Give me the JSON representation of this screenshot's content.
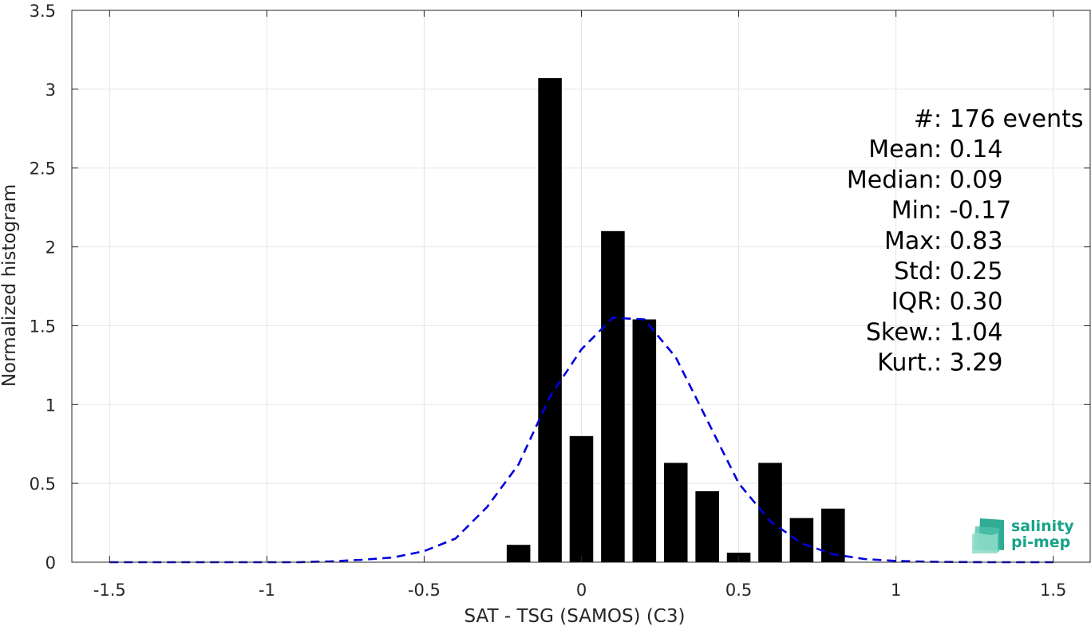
{
  "chart_data": {
    "type": "bar",
    "xlabel": "SAT - TSG (SAMOS) (C3)",
    "ylabel": "Normalized histogram",
    "xlim": [
      -1.62,
      1.62
    ],
    "ylim": [
      0,
      3.5
    ],
    "x_ticks": [
      -1.5,
      -1,
      -0.5,
      0,
      0.5,
      1,
      1.5
    ],
    "x_tick_labels": [
      "-1.5",
      "-1",
      "-0.5",
      "0",
      "0.5",
      "1",
      "1.5"
    ],
    "y_ticks": [
      0,
      0.5,
      1,
      1.5,
      2,
      2.5,
      3,
      3.5
    ],
    "y_tick_labels": [
      "0",
      "0.5",
      "1",
      "1.5",
      "2",
      "2.5",
      "3",
      "3.5"
    ],
    "grid": true,
    "bar_width": 0.075,
    "bars": [
      {
        "x": -0.2,
        "value": 0.11
      },
      {
        "x": -0.1,
        "value": 3.07
      },
      {
        "x": 0.0,
        "value": 0.8
      },
      {
        "x": 0.1,
        "value": 2.1
      },
      {
        "x": 0.2,
        "value": 1.54
      },
      {
        "x": 0.3,
        "value": 0.63
      },
      {
        "x": 0.4,
        "value": 0.45
      },
      {
        "x": 0.5,
        "value": 0.06
      },
      {
        "x": 0.6,
        "value": 0.63
      },
      {
        "x": 0.7,
        "value": 0.28
      },
      {
        "x": 0.8,
        "value": 0.34
      }
    ],
    "bar_color": "#000000",
    "fit_curve": {
      "style": "dashed",
      "color": "#0000dd",
      "x": [
        -1.5,
        -1.4,
        -1.3,
        -1.2,
        -1.1,
        -1.0,
        -0.9,
        -0.8,
        -0.7,
        -0.6,
        -0.5,
        -0.4,
        -0.3,
        -0.2,
        -0.1,
        0.0,
        0.1,
        0.2,
        0.3,
        0.4,
        0.5,
        0.6,
        0.7,
        0.8,
        0.9,
        1.0,
        1.1,
        1.2,
        1.3,
        1.4,
        1.5
      ],
      "y": [
        0,
        0,
        0,
        0,
        0,
        0,
        0,
        0.005,
        0.015,
        0.03,
        0.07,
        0.15,
        0.35,
        0.62,
        1.05,
        1.35,
        1.55,
        1.54,
        1.3,
        0.9,
        0.5,
        0.26,
        0.12,
        0.05,
        0.02,
        0.008,
        0.003,
        0.001,
        0,
        0,
        0
      ]
    },
    "stats": [
      {
        "label": "#  ",
        "value": ": 176 events"
      },
      {
        "label": "Mean ",
        "value": ": 0.14"
      },
      {
        "label": "Median ",
        "value": ": 0.09"
      },
      {
        "label": "Min ",
        "value": ": -0.17"
      },
      {
        "label": "Max ",
        "value": ": 0.83"
      },
      {
        "label": "Std ",
        "value": ": 0.25"
      },
      {
        "label": "IQR ",
        "value": ": 0.30"
      },
      {
        "label": "Skew. ",
        "value": ": 1.04"
      },
      {
        "label": "Kurt. ",
        "value": ": 3.29"
      }
    ]
  },
  "logo": {
    "line1": "salinity",
    "line2": "pi-mep",
    "color": "#1aa389"
  }
}
